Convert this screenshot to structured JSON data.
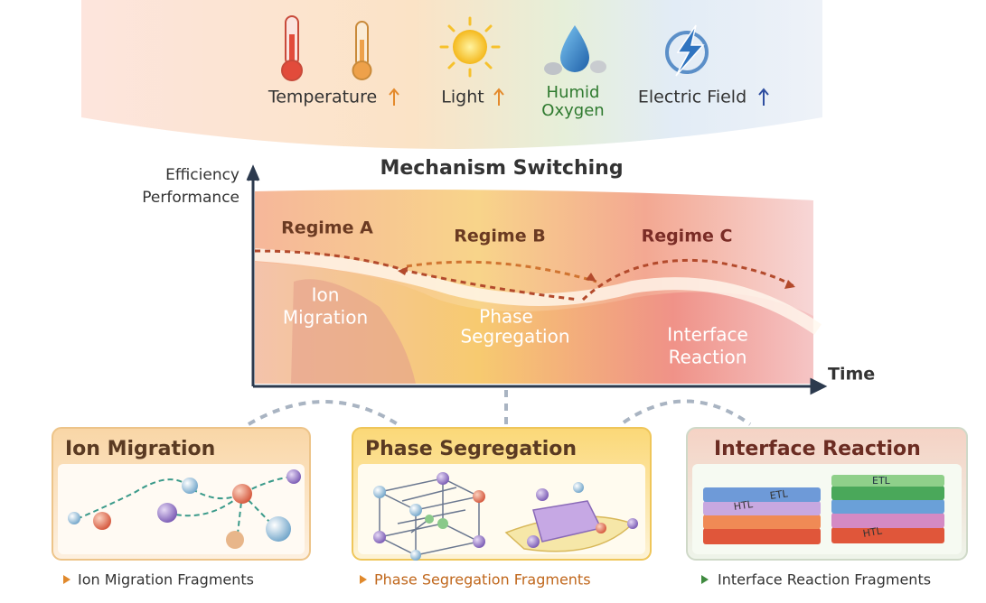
{
  "header": {
    "factors": [
      {
        "lines": [
          "Temperature"
        ]
      },
      {
        "lines": [
          "Light"
        ]
      },
      {
        "lines": [
          "Humid",
          "Oxygen"
        ]
      },
      {
        "lines": [
          "Electric Field"
        ]
      }
    ],
    "title": "Mechanism Switching"
  },
  "plot": {
    "y_axis_label": [
      "Efficiency",
      "Performance"
    ],
    "x_axis_label": "Time",
    "regimes": [
      "Regime A",
      "Regime B",
      "Regime C"
    ],
    "mechanisms": [
      {
        "lines": [
          "Ion",
          "Migration"
        ]
      },
      {
        "lines": [
          "Phase",
          "Segregation"
        ]
      },
      {
        "lines": [
          "Interface",
          "Reaction"
        ]
      }
    ]
  },
  "panels": [
    {
      "title": "Ion Migration",
      "caption": "Ion Migration Fragments"
    },
    {
      "title": "Phase Segregation",
      "caption": "Phase Segregation Fragments"
    },
    {
      "title": "Interface Reaction",
      "caption": "Interface Reaction Fragments",
      "stack_labels": [
        "HTL",
        "ETL",
        "ETL",
        "HTL"
      ]
    }
  ]
}
